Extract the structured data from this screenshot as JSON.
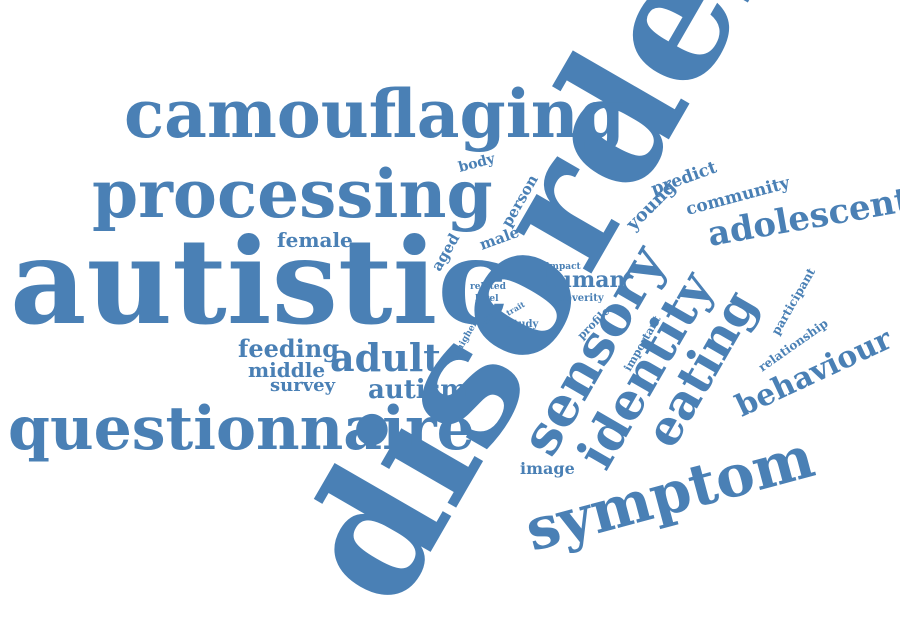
{
  "color": "#4a80b5",
  "words": [
    {
      "key": "disorder",
      "text": "disorder",
      "rotation": -60
    },
    {
      "key": "autistic",
      "text": "autistic",
      "rotation": 0
    },
    {
      "key": "camouflaging",
      "text": "camouflaging",
      "rotation": 0
    },
    {
      "key": "processing",
      "text": "processing",
      "rotation": 0
    },
    {
      "key": "questionnaire",
      "text": "questionnaire",
      "rotation": 0
    },
    {
      "key": "symptom",
      "text": "symptom",
      "rotation": -15
    },
    {
      "key": "sensory",
      "text": "sensory",
      "rotation": -60
    },
    {
      "key": "identity",
      "text": "identity",
      "rotation": -60
    },
    {
      "key": "eating",
      "text": "eating",
      "rotation": -60
    },
    {
      "key": "adolescent",
      "text": "adolescent",
      "rotation": -10
    },
    {
      "key": "behaviour",
      "text": "behaviour",
      "rotation": -25
    },
    {
      "key": "adult",
      "text": "adult",
      "rotation": 0
    },
    {
      "key": "autism",
      "text": "autism",
      "rotation": 0
    },
    {
      "key": "feeding",
      "text": "feeding",
      "rotation": 0
    },
    {
      "key": "middle",
      "text": "middle",
      "rotation": 0
    },
    {
      "key": "survey",
      "text": "survey",
      "rotation": 0
    },
    {
      "key": "female",
      "text": "female",
      "rotation": 0
    },
    {
      "key": "human",
      "text": "human",
      "rotation": 0
    },
    {
      "key": "image",
      "text": "image",
      "rotation": 0
    },
    {
      "key": "community",
      "text": "community",
      "rotation": -15
    },
    {
      "key": "predict",
      "text": "predict",
      "rotation": -20
    },
    {
      "key": "young",
      "text": "young",
      "rotation": -45
    },
    {
      "key": "body",
      "text": "body",
      "rotation": -15
    },
    {
      "key": "person",
      "text": "person",
      "rotation": -60
    },
    {
      "key": "male",
      "text": "male",
      "rotation": -20
    },
    {
      "key": "aged",
      "text": "aged",
      "rotation": -60
    },
    {
      "key": "participant",
      "text": "participant",
      "rotation": -60
    },
    {
      "key": "relationship",
      "text": "relationship",
      "rotation": -35
    },
    {
      "key": "important",
      "text": "important",
      "rotation": -60
    },
    {
      "key": "profile",
      "text": "profile",
      "rotation": -45
    },
    {
      "key": "impact",
      "text": "impact",
      "rotation": 0
    },
    {
      "key": "severity",
      "text": "severity",
      "rotation": 0
    },
    {
      "key": "related",
      "text": "related",
      "rotation": 0
    },
    {
      "key": "level",
      "text": "level",
      "rotation": 0
    },
    {
      "key": "study",
      "text": "study",
      "rotation": 0
    },
    {
      "key": "trait",
      "text": "trait",
      "rotation": -30
    },
    {
      "key": "higher",
      "text": "higher",
      "rotation": -60
    },
    {
      "key": "role",
      "text": "role",
      "rotation": -60
    }
  ]
}
